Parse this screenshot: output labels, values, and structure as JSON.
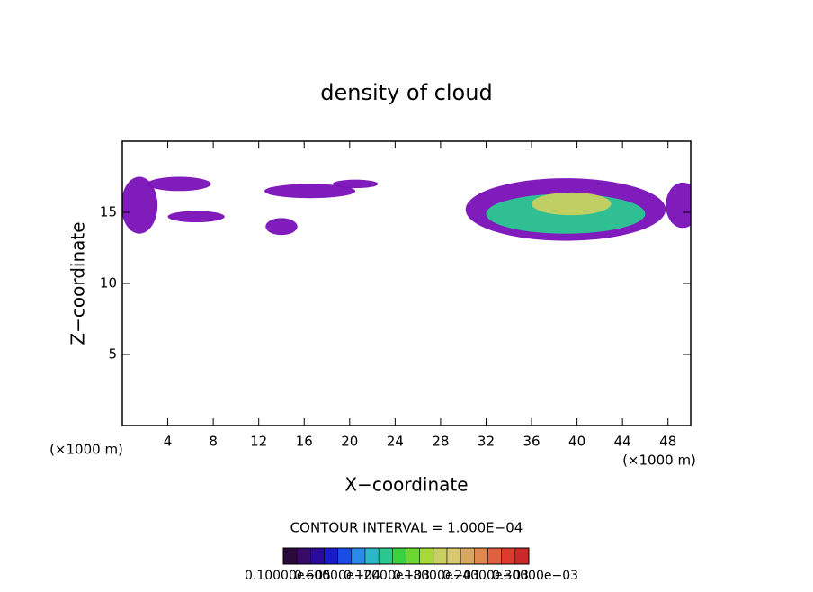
{
  "chart_data": {
    "type": "contour",
    "title": "density of cloud",
    "x_label": "X−coordinate",
    "y_label": "Z−coordinate",
    "x_unit": "(×1000 m)",
    "y_unit": "(×1000 m)",
    "contour_interval": "CONTOUR INTERVAL = 1.000E−04",
    "xlim": [
      0,
      50
    ],
    "ylim": [
      0,
      20
    ],
    "xticks": [
      4,
      8,
      12,
      16,
      20,
      24,
      28,
      32,
      36,
      40,
      44,
      48
    ],
    "yticks": [
      5,
      10,
      15
    ],
    "cells": [
      {
        "x": 1.5,
        "z": 15.5,
        "dx": 1.6,
        "dz": 2.0,
        "value": 3e-05
      },
      {
        "x": 5.0,
        "z": 17.0,
        "dx": 2.8,
        "dz": 0.5,
        "value": 3e-05
      },
      {
        "x": 6.5,
        "z": 14.7,
        "dx": 2.5,
        "dz": 0.4,
        "value": 3e-05
      },
      {
        "x": 14.0,
        "z": 14.0,
        "dx": 1.4,
        "dz": 0.6,
        "value": 3e-05
      },
      {
        "x": 16.5,
        "z": 16.5,
        "dx": 4.0,
        "dz": 0.5,
        "value": 3e-05
      },
      {
        "x": 20.5,
        "z": 17.0,
        "dx": 2.0,
        "dz": 0.3,
        "value": 3e-05
      },
      {
        "x": 39.0,
        "z": 15.2,
        "dx": 8.8,
        "dz": 2.2,
        "value": 3e-05
      },
      {
        "x": 39.0,
        "z": 14.9,
        "dx": 7.0,
        "dz": 1.4,
        "value": 0.00012
      },
      {
        "x": 39.5,
        "z": 15.6,
        "dx": 3.5,
        "dz": 0.8,
        "value": 0.0002
      },
      {
        "x": 49.3,
        "z": 15.5,
        "dx": 1.5,
        "dz": 1.6,
        "value": 3e-05
      }
    ],
    "colorbar": {
      "colors": [
        "#2a0a3a",
        "#3a0a6a",
        "#2a0a9a",
        "#1a1ac8",
        "#1a4ae8",
        "#2a8ae8",
        "#2ab8c8",
        "#2ac890",
        "#3ad040",
        "#6ad830",
        "#a8d838",
        "#c8d060",
        "#d8c870",
        "#d8a860",
        "#e08850",
        "#e06040",
        "#e03a30",
        "#c82a2a"
      ],
      "ticks": [
        {
          "value": 1e-06,
          "label": "0.10000e−05"
        },
        {
          "value": 6e-05,
          "label": "0.60000e−04"
        },
        {
          "value": 0.00012,
          "label": "0.12000e−03"
        },
        {
          "value": 0.00018,
          "label": "0.18000e−03"
        },
        {
          "value": 0.00024,
          "label": "0.24000e−03"
        },
        {
          "value": 0.0003,
          "label": "0.30000e−03"
        }
      ]
    }
  }
}
